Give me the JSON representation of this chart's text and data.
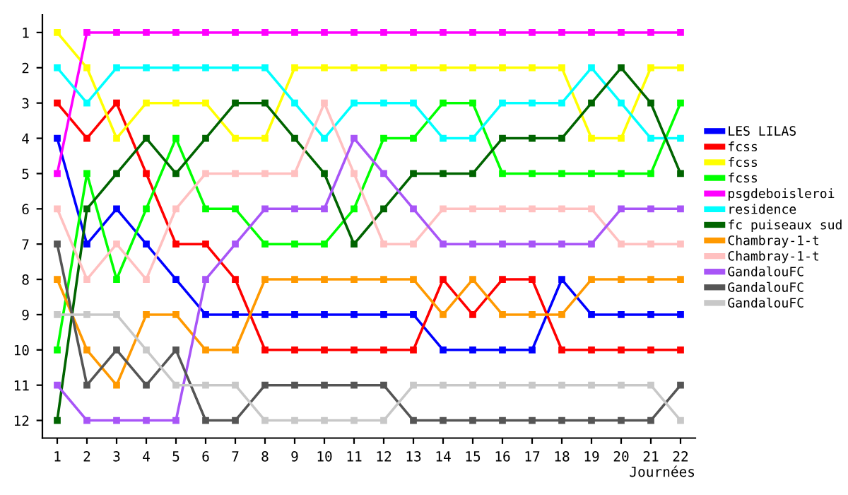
{
  "chart_data": {
    "type": "line",
    "xlabel": "Journées",
    "x": [
      1,
      2,
      3,
      4,
      5,
      6,
      7,
      8,
      9,
      10,
      11,
      12,
      13,
      14,
      15,
      16,
      17,
      18,
      19,
      20,
      21,
      22
    ],
    "xlim": [
      0.5,
      22.5
    ],
    "xticks": [
      1,
      2,
      3,
      4,
      5,
      6,
      7,
      8,
      9,
      10,
      11,
      12,
      13,
      14,
      15,
      16,
      17,
      18,
      19,
      20,
      21,
      22
    ],
    "ylim": [
      12.5,
      0.5
    ],
    "yticks": [
      1,
      2,
      3,
      4,
      5,
      6,
      7,
      8,
      9,
      10,
      11,
      12
    ],
    "grid": false,
    "legend": "right",
    "marker": "square",
    "line_style": "solid",
    "series": [
      {
        "name": "LES LILAS",
        "color": "#0000ff",
        "values": [
          4,
          7,
          6,
          7,
          8,
          9,
          9,
          9,
          9,
          9,
          9,
          9,
          9,
          10,
          10,
          10,
          10,
          8,
          9,
          9,
          9,
          9
        ]
      },
      {
        "name": "fcss",
        "color": "#ff0000",
        "values": [
          3,
          4,
          3,
          5,
          7,
          7,
          8,
          10,
          10,
          10,
          10,
          10,
          10,
          8,
          9,
          8,
          8,
          10,
          10,
          10,
          10,
          10
        ]
      },
      {
        "name": "fcss",
        "color": "#ffff00",
        "values": [
          1,
          2,
          4,
          3,
          3,
          3,
          4,
          4,
          2,
          2,
          2,
          2,
          2,
          2,
          2,
          2,
          2,
          2,
          4,
          4,
          2,
          2
        ]
      },
      {
        "name": "fcss",
        "color": "#00ff00",
        "values": [
          10,
          5,
          8,
          6,
          4,
          6,
          6,
          7,
          7,
          7,
          6,
          4,
          4,
          3,
          3,
          5,
          5,
          5,
          5,
          5,
          5,
          3
        ]
      },
      {
        "name": "psgdeboisleroi",
        "color": "#ff00ff",
        "values": [
          5,
          1,
          1,
          1,
          1,
          1,
          1,
          1,
          1,
          1,
          1,
          1,
          1,
          1,
          1,
          1,
          1,
          1,
          1,
          1,
          1,
          1
        ]
      },
      {
        "name": "residence",
        "color": "#00ffff",
        "values": [
          2,
          3,
          2,
          2,
          2,
          2,
          2,
          2,
          3,
          4,
          3,
          3,
          3,
          4,
          4,
          3,
          3,
          3,
          2,
          3,
          4,
          4
        ]
      },
      {
        "name": "fc puiseaux sud",
        "color": "#006400",
        "values": [
          12,
          6,
          5,
          4,
          5,
          4,
          3,
          3,
          4,
          5,
          7,
          6,
          5,
          5,
          5,
          4,
          4,
          4,
          3,
          2,
          3,
          5
        ]
      },
      {
        "name": "Chambray-1-t",
        "color": "#ff9900",
        "values": [
          8,
          10,
          11,
          9,
          9,
          10,
          10,
          8,
          8,
          8,
          8,
          8,
          8,
          9,
          8,
          9,
          9,
          9,
          8,
          8,
          8,
          8
        ]
      },
      {
        "name": "Chambray-1-t",
        "color": "#ffc0c0",
        "values": [
          6,
          8,
          7,
          8,
          6,
          5,
          5,
          5,
          5,
          3,
          5,
          7,
          7,
          6,
          6,
          6,
          6,
          6,
          6,
          7,
          7,
          7
        ]
      },
      {
        "name": "GandalouFC",
        "color": "#a855f7",
        "values": [
          11,
          12,
          12,
          12,
          12,
          8,
          7,
          6,
          6,
          6,
          4,
          5,
          6,
          7,
          7,
          7,
          7,
          7,
          7,
          6,
          6,
          6
        ]
      },
      {
        "name": "GandalouFC",
        "color": "#555555",
        "values": [
          7,
          11,
          10,
          11,
          10,
          12,
          12,
          11,
          11,
          11,
          11,
          11,
          12,
          12,
          12,
          12,
          12,
          12,
          12,
          12,
          12,
          11
        ]
      },
      {
        "name": "GandalouFC",
        "color": "#c8c8c8",
        "values": [
          9,
          9,
          9,
          10,
          11,
          11,
          11,
          12,
          12,
          12,
          12,
          12,
          11,
          11,
          11,
          11,
          11,
          11,
          11,
          11,
          11,
          12
        ]
      }
    ]
  }
}
